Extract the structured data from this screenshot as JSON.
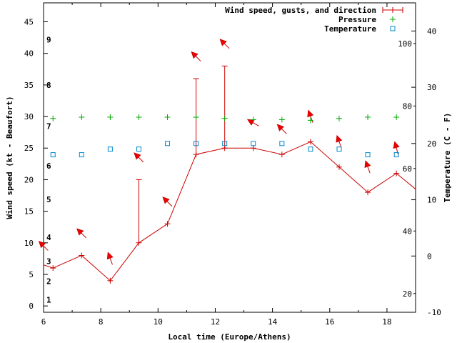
{
  "chart_data": {
    "type": "line",
    "title": "",
    "xlabel": "Local time (Europe/Athens)",
    "ylabel_left": "Wind speed (kt - Beaufort)",
    "ylabel_right": "Temperature (C - F)",
    "xlim": [
      6,
      19
    ],
    "ylim": [
      -1,
      48
    ],
    "temp_c_lim": [
      -10,
      45
    ],
    "x_ticks": [
      6,
      8,
      10,
      12,
      14,
      16,
      18
    ],
    "y_ticks": [
      0,
      5,
      10,
      15,
      20,
      25,
      30,
      35,
      40,
      45
    ],
    "temp_c_ticks": [
      -10,
      0,
      10,
      20,
      30,
      40
    ],
    "temp_f_ticks": [
      20,
      40,
      60,
      80,
      100
    ],
    "beaufort_marks": [
      {
        "force": 1,
        "kt": 1
      },
      {
        "force": 2,
        "kt": 3.9
      },
      {
        "force": 3,
        "kt": 7.1
      },
      {
        "force": 4,
        "kt": 10.9
      },
      {
        "force": 5,
        "kt": 16.9
      },
      {
        "force": 6,
        "kt": 22.2
      },
      {
        "force": 7,
        "kt": 28.5
      },
      {
        "force": 8,
        "kt": 35.0
      },
      {
        "force": 9,
        "kt": 42.2
      }
    ],
    "legend": [
      {
        "name": "Wind speed, gusts, and direction",
        "color": "#cc0000"
      },
      {
        "name": "Pressure",
        "color": "#00aa00"
      },
      {
        "name": "Temperature",
        "color": "#0088cc"
      }
    ],
    "wind_speed": {
      "x": [
        6,
        6.33,
        7.33,
        8.33,
        9.33,
        10.33,
        11.33,
        12.33,
        13.33,
        14.33,
        15.33,
        16.33,
        17.33,
        18.33,
        19
      ],
      "values": [
        6.5,
        6,
        8,
        4,
        10,
        13,
        24,
        25,
        25,
        24,
        26,
        22,
        18,
        21,
        18.5
      ]
    },
    "gusts": [
      {
        "x": 9.33,
        "low": 10,
        "high": 20
      },
      {
        "x": 11.33,
        "low": 24,
        "high": 36
      },
      {
        "x": 12.33,
        "low": 25,
        "high": 38
      }
    ],
    "wind_direction_arrows": [
      {
        "x": 6.0,
        "y": 9.5,
        "dir": 135
      },
      {
        "x": 7.33,
        "y": 11.5,
        "dir": 135
      },
      {
        "x": 8.33,
        "y": 7.5,
        "dir": 160
      },
      {
        "x": 9.33,
        "y": 23.5,
        "dir": 135
      },
      {
        "x": 10.33,
        "y": 16.5,
        "dir": 135
      },
      {
        "x": 11.33,
        "y": 39.5,
        "dir": 135
      },
      {
        "x": 12.33,
        "y": 41.5,
        "dir": 135
      },
      {
        "x": 13.33,
        "y": 29.0,
        "dir": 120
      },
      {
        "x": 14.33,
        "y": 28.0,
        "dir": 135
      },
      {
        "x": 15.33,
        "y": 30.0,
        "dir": 160
      },
      {
        "x": 16.33,
        "y": 26.0,
        "dir": 160
      },
      {
        "x": 17.33,
        "y": 22.0,
        "dir": 160
      },
      {
        "x": 18.33,
        "y": 25.0,
        "dir": 165
      }
    ],
    "pressure": {
      "x": [
        6.33,
        7.33,
        8.33,
        9.33,
        10.33,
        11.33,
        12.33,
        13.33,
        14.33,
        15.33,
        16.33,
        17.33,
        18.33
      ],
      "values_on_left_axis": [
        29.7,
        29.9,
        29.9,
        29.9,
        29.9,
        29.9,
        29.7,
        29.5,
        29.5,
        29.4,
        29.7,
        29.9,
        29.9
      ]
    },
    "temperature": {
      "x": [
        6.33,
        7.33,
        8.33,
        9.33,
        10.33,
        11.33,
        12.33,
        13.33,
        14.33,
        15.33,
        16.33,
        17.33,
        18.33
      ],
      "values_c": [
        18,
        18,
        19,
        19,
        20,
        20,
        20,
        20,
        20,
        19,
        19,
        18,
        18
      ]
    }
  }
}
